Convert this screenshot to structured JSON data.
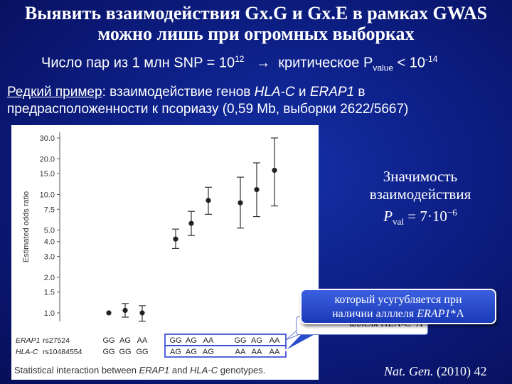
{
  "title": {
    "line1": "Выявить взаимодействия Gx.G и Gx.E в рамках GWAS",
    "line2": "можно лишь при огромных выборках"
  },
  "subtitle": {
    "part1": "Число пар из 1 млн SNP = 10",
    "sup": "12",
    "arrow": "→",
    "part2": "критическое P",
    "sub": "value",
    "part3": " < 10",
    "sup2": "-14"
  },
  "example": {
    "label": "Редкий пример",
    "part1": ": взаимодействие генов ",
    "gene1": "HLA-C",
    "mid": " и ",
    "gene2": "ERAP1",
    "part2": " в предрасположенности к псориазу (0,59 Mb, выборки 2622/5667)"
  },
  "chart_data": {
    "type": "scatter",
    "ylabel": "Estimated odds ratio",
    "y_scale": "log",
    "y_ticks": [
      "1.0",
      "1.5",
      "2.0",
      "3.0",
      "4.0",
      "5.0",
      "7.5",
      "10.0",
      "15.0",
      "20.0",
      "30.0"
    ],
    "y_tick_values": [
      1.0,
      1.5,
      2.0,
      3.0,
      4.0,
      5.0,
      7.5,
      10.0,
      15.0,
      20.0,
      30.0
    ],
    "row_labels": [
      {
        "gene": "ERAP1",
        "snp": "rs27524"
      },
      {
        "gene": "HLA-C",
        "snp": "rs10484554"
      }
    ],
    "erap1_genotypes": [
      "GG",
      "AG",
      "AA",
      "GG",
      "AG",
      "AA",
      "GG",
      "AG",
      "AA"
    ],
    "hlac_genotypes": [
      "GG",
      "GG",
      "GG",
      "AG",
      "AG",
      "AG",
      "AA",
      "AA",
      "AA"
    ],
    "points": [
      {
        "or": 1.0,
        "lo": 1.0,
        "hi": 1.0
      },
      {
        "or": 1.05,
        "lo": 0.92,
        "hi": 1.2
      },
      {
        "or": 1.0,
        "lo": 0.85,
        "hi": 1.15
      },
      {
        "or": 4.2,
        "lo": 3.5,
        "hi": 5.1
      },
      {
        "or": 5.7,
        "lo": 4.5,
        "hi": 7.2
      },
      {
        "or": 8.9,
        "lo": 6.8,
        "hi": 11.5
      },
      {
        "or": 8.5,
        "lo": 5.2,
        "hi": 14.0
      },
      {
        "or": 11.0,
        "lo": 6.5,
        "hi": 18.5
      },
      {
        "or": 16.0,
        "lo": 8.0,
        "hi": 30.0
      }
    ],
    "caption_pre": "Statistical interaction between ",
    "caption_g1": "ERAP1",
    "caption_mid": " and ",
    "caption_g2": "HLA-C",
    "caption_post": " genotypes."
  },
  "significance": {
    "line1": "Значимость",
    "line2": "взаимодействия",
    "p_label": "P",
    "p_sub": "val",
    "p_value": " = 7·10",
    "p_exp": "−6"
  },
  "callout_back": {
    "text": "аллеля HLA-C*A"
  },
  "callout": {
    "line1": "который усугубляется при",
    "line2_pre": "наличии алллеля ",
    "line2_gene": "ERAP1",
    "line2_post": "*A"
  },
  "citation": {
    "journal": "Nat. Gen.",
    "rest": " (2010) 42"
  },
  "colors": {
    "background": "#0d1f86",
    "box_outline": "#2d3fd0",
    "callout": "#2a4ccc"
  }
}
